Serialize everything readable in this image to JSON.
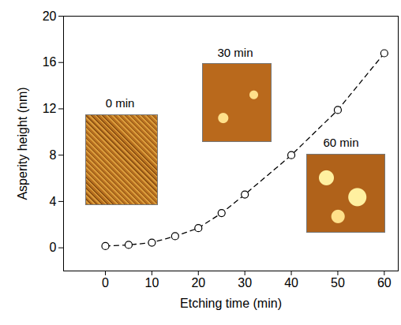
{
  "chart_data": {
    "type": "scatter",
    "x_label": "Etching time (min)",
    "y_label": "Asperity height (nm)",
    "x": [
      0,
      5,
      10,
      15,
      20,
      25,
      30,
      40,
      50,
      60
    ],
    "values": [
      0.15,
      0.25,
      0.45,
      1.0,
      1.7,
      3.0,
      4.6,
      8.0,
      11.9,
      16.8
    ],
    "color": "#000000",
    "marker": "open circle",
    "line_style": "dashed",
    "xlim": [
      -9,
      63
    ],
    "xticks": [
      0,
      10,
      20,
      30,
      40,
      50,
      60
    ],
    "ylim": [
      -2,
      20
    ],
    "yticks": [
      0,
      4,
      8,
      12,
      16,
      20
    ],
    "grid": false,
    "annotations": [
      "0 min",
      "30 min",
      "60 min"
    ]
  }
}
